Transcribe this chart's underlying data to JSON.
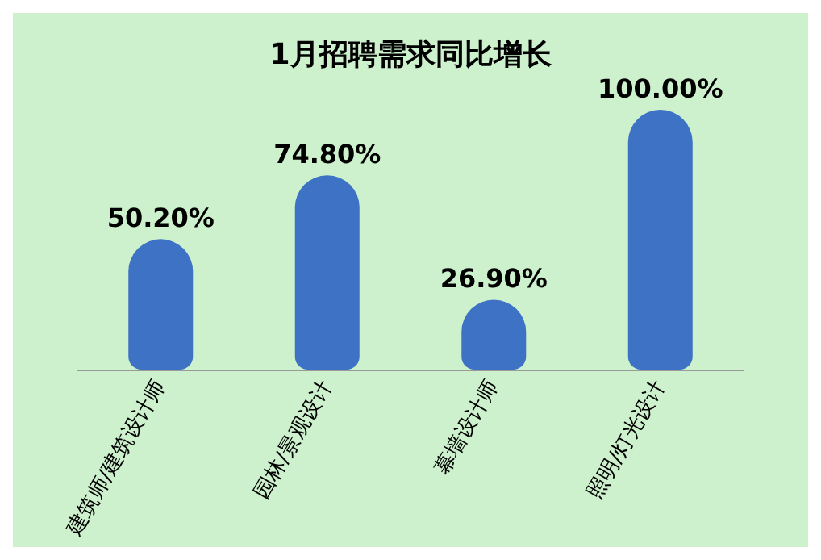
{
  "chart_data": {
    "type": "bar",
    "title": "1月招聘需求同比增长",
    "categories": [
      "建筑师/建筑设计师",
      "园林/景观设计",
      "幕墙设计师",
      "照明/灯光设计"
    ],
    "values": [
      50.2,
      74.8,
      26.9,
      100
    ],
    "value_labels": [
      "50.20%",
      "74.80%",
      "26.90%",
      "100.00%"
    ],
    "color": "#3d72c4"
  }
}
